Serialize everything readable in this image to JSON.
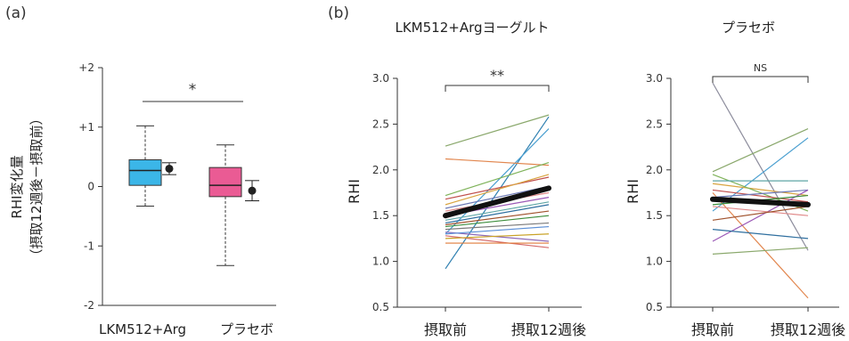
{
  "panel_a_label": "(a)",
  "panel_b_label": "(b)",
  "chart_data": [
    {
      "type": "box",
      "panel": "(a)",
      "ylabel": "RHI変化量",
      "ylabel_sub": "（摂取12週後－摂取前）",
      "ylim": [
        -2,
        2
      ],
      "yticks": [
        "+2",
        "+1",
        "0",
        "-1",
        "-2"
      ],
      "significance": "*",
      "groups": [
        {
          "name": "LKM512+Arg",
          "color": "#3bb6e8",
          "whisker_low": -0.33,
          "q1": 0.02,
          "median": 0.27,
          "q3": 0.45,
          "whisker_high": 1.02,
          "mean": 0.3,
          "ci_low": 0.2,
          "ci_high": 0.4
        },
        {
          "name": "プラセボ",
          "color": "#ea5b94",
          "whisker_low": -1.33,
          "q1": -0.17,
          "median": 0.02,
          "q3": 0.32,
          "whisker_high": 0.7,
          "mean": -0.07,
          "ci_low": -0.24,
          "ci_high": 0.1
        }
      ]
    },
    {
      "type": "line",
      "panel": "(b)",
      "title": "LKM512+Argヨーグルト",
      "ylabel": "RHI",
      "ylim": [
        0.5,
        3.0
      ],
      "yticks": [
        "3.0",
        "2.5",
        "2.0",
        "1.5",
        "1.0",
        "0.5"
      ],
      "categories": [
        "摂取前",
        "摂取12週後"
      ],
      "significance": "**",
      "mean": [
        1.5,
        1.8
      ],
      "series": [
        {
          "color": "#8aa86c",
          "values": [
            2.26,
            2.6
          ]
        },
        {
          "color": "#2e7fb0",
          "values": [
            0.92,
            2.58
          ]
        },
        {
          "color": "#4a9fd0",
          "values": [
            1.3,
            2.45
          ]
        },
        {
          "color": "#e2874f",
          "values": [
            2.12,
            2.05
          ]
        },
        {
          "color": "#7fb35a",
          "values": [
            1.72,
            2.08
          ]
        },
        {
          "color": "#c0504d",
          "values": [
            1.68,
            1.92
          ]
        },
        {
          "color": "#d9a441",
          "values": [
            1.62,
            1.95
          ]
        },
        {
          "color": "#6b78b4",
          "values": [
            1.58,
            1.82
          ]
        },
        {
          "color": "#e08a8a",
          "values": [
            1.55,
            1.75
          ]
        },
        {
          "color": "#9b59b6",
          "values": [
            1.5,
            1.7
          ]
        },
        {
          "color": "#5fa6a6",
          "values": [
            1.45,
            1.65
          ]
        },
        {
          "color": "#2f6f9f",
          "values": [
            1.42,
            1.62
          ]
        },
        {
          "color": "#a0522d",
          "values": [
            1.4,
            1.55
          ]
        },
        {
          "color": "#3c8d3c",
          "values": [
            1.38,
            1.5
          ]
        },
        {
          "color": "#7a7a7a",
          "values": [
            1.35,
            1.42
          ]
        },
        {
          "color": "#8e6bb8",
          "values": [
            1.32,
            1.22
          ]
        },
        {
          "color": "#5b8fd6",
          "values": [
            1.3,
            1.38
          ]
        },
        {
          "color": "#d46a6a",
          "values": [
            1.28,
            1.15
          ]
        },
        {
          "color": "#c9a227",
          "values": [
            1.25,
            1.3
          ]
        },
        {
          "color": "#e07b39",
          "values": [
            1.2,
            1.2
          ]
        }
      ]
    },
    {
      "type": "line",
      "panel": "(b)",
      "title": "プラセボ",
      "ylabel": "RHI",
      "ylim": [
        0.5,
        3.0
      ],
      "yticks": [
        "3.0",
        "2.5",
        "2.0",
        "1.5",
        "1.0",
        "0.5"
      ],
      "categories": [
        "摂取前",
        "摂取12週後"
      ],
      "significance": "NS",
      "mean": [
        1.68,
        1.62
      ],
      "series": [
        {
          "color": "#8c8c9c",
          "values": [
            2.95,
            1.12
          ]
        },
        {
          "color": "#e2874f",
          "values": [
            1.75,
            0.6
          ]
        },
        {
          "color": "#8aa86c",
          "values": [
            1.98,
            2.45
          ]
        },
        {
          "color": "#4a9fd0",
          "values": [
            1.55,
            2.35
          ]
        },
        {
          "color": "#d9a441",
          "values": [
            1.85,
            1.72
          ]
        },
        {
          "color": "#7fb35a",
          "values": [
            1.95,
            1.55
          ]
        },
        {
          "color": "#5fa6a6",
          "values": [
            1.88,
            1.88
          ]
        },
        {
          "color": "#c0504d",
          "values": [
            1.78,
            1.65
          ]
        },
        {
          "color": "#6b78b4",
          "values": [
            1.7,
            1.78
          ]
        },
        {
          "color": "#9b59b6",
          "values": [
            1.22,
            1.78
          ]
        },
        {
          "color": "#2f6f9f",
          "values": [
            1.35,
            1.25
          ]
        },
        {
          "color": "#e08a8a",
          "values": [
            1.6,
            1.5
          ]
        },
        {
          "color": "#3c8d3c",
          "values": [
            1.62,
            1.72
          ]
        },
        {
          "color": "#a0522d",
          "values": [
            1.45,
            1.6
          ]
        },
        {
          "color": "#8aa86c",
          "values": [
            1.08,
            1.15
          ]
        }
      ]
    }
  ]
}
